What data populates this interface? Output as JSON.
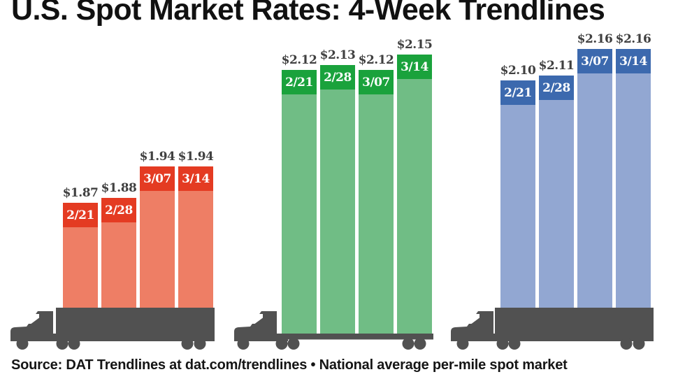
{
  "title": "U.S. Spot Market Rates: 4-Week Trendlines",
  "source_line": "Source: DAT Trendlines at dat.com/trendlines • National average per-mile spot market",
  "colors": {
    "truck": "#515151",
    "title_text": "#111111",
    "value_label": "#404040"
  },
  "chart_data": {
    "type": "bar",
    "title": "U.S. Spot Market Rates: 4-Week Trendlines",
    "categories": [
      "2/21",
      "2/28",
      "3/07",
      "3/14"
    ],
    "legend_position": "none",
    "grid": false,
    "series": [
      {
        "name": "group-1-red",
        "truck_icon": "semi-truck-box-icon",
        "cap_color": "#e43b22",
        "body_color": "#ee7e65",
        "values": [
          1.87,
          1.88,
          1.94,
          1.94
        ],
        "labels": [
          "$1.87",
          "$1.88",
          "$1.94",
          "$1.94"
        ]
      },
      {
        "name": "group-2-green",
        "truck_icon": "semi-truck-flatbed-icon",
        "cap_color": "#1aa23c",
        "body_color": "#70bd85",
        "values": [
          2.12,
          2.13,
          2.12,
          2.15
        ],
        "labels": [
          "$2.12",
          "$2.13",
          "$2.12",
          "$2.15"
        ]
      },
      {
        "name": "group-3-blue",
        "truck_icon": "semi-truck-box-icon",
        "cap_color": "#3c69ae",
        "body_color": "#92a7d2",
        "values": [
          2.1,
          2.11,
          2.16,
          2.16
        ],
        "labels": [
          "$2.10",
          "$2.11",
          "$2.16",
          "$2.16"
        ]
      }
    ]
  }
}
